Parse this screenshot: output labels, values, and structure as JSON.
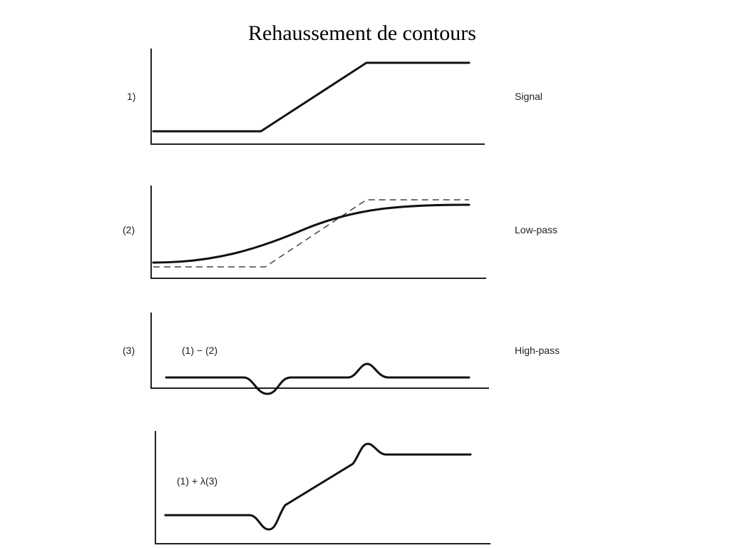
{
  "title": "Rehaussement de contours",
  "panels": [
    {
      "number": "1)",
      "expression": "",
      "name": "Signal"
    },
    {
      "number": "(2)",
      "expression": "",
      "name": "Low-pass"
    },
    {
      "number": "(3)",
      "expression": "(1) − (2)",
      "name": "High-pass"
    },
    {
      "number": "",
      "expression": "(1) + λ(3)",
      "name": ""
    }
  ]
}
